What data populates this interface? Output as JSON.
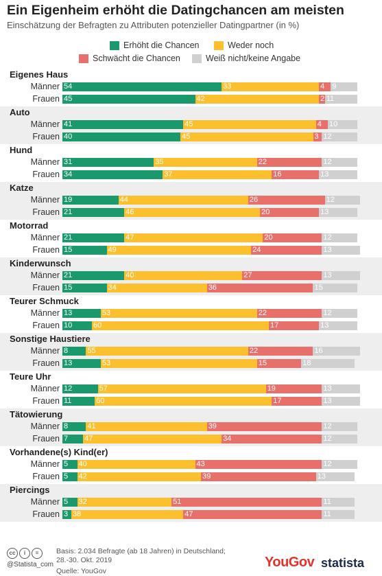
{
  "title": "Ein Eigenheim erhöht die Datingchancen am meisten",
  "subtitle": "Einschätzung der Befragten zu Attributen potenzieller Datingpartner (in %)",
  "colors": {
    "increase": "#1a9a6c",
    "neither": "#fcbf2e",
    "decrease": "#e8706a",
    "unknown": "#d0d0d0"
  },
  "chart_data": {
    "type": "bar",
    "stacked": true,
    "orientation": "horizontal",
    "legend_position": "top",
    "series": [
      {
        "name": "Erhöht die Chancen",
        "color": "#1a9a6c"
      },
      {
        "name": "Weder noch",
        "color": "#fcbf2e"
      },
      {
        "name": "Schwächt die Chancen",
        "color": "#e8706a"
      },
      {
        "name": "Weiß nicht/keine Angabe",
        "color": "#d0d0d0"
      }
    ],
    "groups": [
      {
        "category": "Eigenes Haus",
        "rows": [
          {
            "label": "Männer",
            "values": [
              54,
              33,
              4,
              9
            ]
          },
          {
            "label": "Frauen",
            "values": [
              45,
              42,
              2,
              11
            ]
          }
        ]
      },
      {
        "category": "Auto",
        "rows": [
          {
            "label": "Männer",
            "values": [
              41,
              45,
              4,
              10
            ]
          },
          {
            "label": "Frauen",
            "values": [
              40,
              45,
              3,
              12
            ]
          }
        ]
      },
      {
        "category": "Hund",
        "rows": [
          {
            "label": "Männer",
            "values": [
              31,
              35,
              22,
              12
            ]
          },
          {
            "label": "Frauen",
            "values": [
              34,
              37,
              16,
              13
            ]
          }
        ]
      },
      {
        "category": "Katze",
        "rows": [
          {
            "label": "Männer",
            "values": [
              19,
              44,
              26,
              12
            ]
          },
          {
            "label": "Frauen",
            "values": [
              21,
              46,
              20,
              13
            ]
          }
        ]
      },
      {
        "category": "Motorrad",
        "rows": [
          {
            "label": "Männer",
            "values": [
              21,
              47,
              20,
              12
            ]
          },
          {
            "label": "Frauen",
            "values": [
              15,
              49,
              24,
              13
            ]
          }
        ]
      },
      {
        "category": "Kinderwunsch",
        "rows": [
          {
            "label": "Männer",
            "values": [
              21,
              40,
              27,
              13
            ]
          },
          {
            "label": "Frauen",
            "values": [
              15,
              34,
              36,
              15
            ]
          }
        ]
      },
      {
        "category": "Teurer Schmuck",
        "rows": [
          {
            "label": "Männer",
            "values": [
              13,
              53,
              22,
              12
            ]
          },
          {
            "label": "Frauen",
            "values": [
              10,
              60,
              17,
              13
            ]
          }
        ]
      },
      {
        "category": "Sonstige Haustiere",
        "rows": [
          {
            "label": "Männer",
            "values": [
              8,
              55,
              22,
              16
            ]
          },
          {
            "label": "Frauen",
            "values": [
              13,
              53,
              15,
              18
            ]
          }
        ]
      },
      {
        "category": "Teure Uhr",
        "rows": [
          {
            "label": "Männer",
            "values": [
              12,
              57,
              19,
              13
            ]
          },
          {
            "label": "Frauen",
            "values": [
              11,
              60,
              17,
              13
            ]
          }
        ]
      },
      {
        "category": "Tätowierung",
        "rows": [
          {
            "label": "Männer",
            "values": [
              8,
              41,
              39,
              12
            ]
          },
          {
            "label": "Frauen",
            "values": [
              7,
              47,
              34,
              12
            ]
          }
        ]
      },
      {
        "category": "Vorhandene(s) Kind(er)",
        "rows": [
          {
            "label": "Männer",
            "values": [
              5,
              40,
              43,
              12
            ]
          },
          {
            "label": "Frauen",
            "values": [
              5,
              42,
              39,
              13
            ]
          }
        ]
      },
      {
        "category": "Piercings",
        "rows": [
          {
            "label": "Männer",
            "values": [
              5,
              32,
              51,
              11
            ]
          },
          {
            "label": "Frauen",
            "values": [
              3,
              38,
              47,
              11
            ]
          }
        ]
      }
    ]
  },
  "footer": {
    "source_line1": "Basis: 2.034 Befragte (ab 18 Jahren) in Deutschland;",
    "source_line2": "28.-30. Okt. 2019",
    "source_line3": "Quelle: YouGov",
    "copyright": "@Statista_com",
    "yougov_logo": "YouGov",
    "statista_logo": "statista",
    "cc_icons": [
      "cc-icon",
      "by-icon",
      "equals-icon"
    ]
  }
}
